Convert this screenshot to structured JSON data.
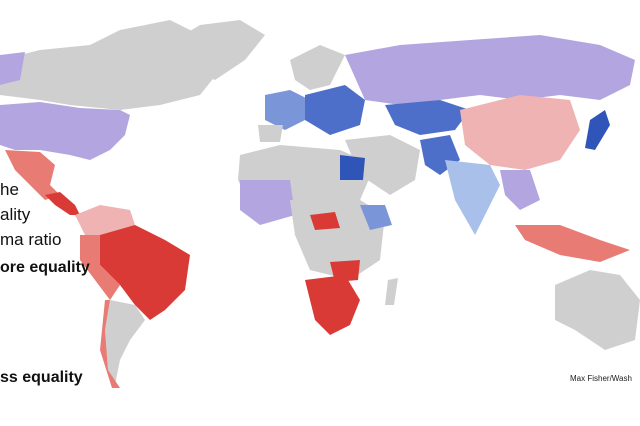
{
  "legend": {
    "lines": [
      "he",
      "ality",
      "ma ratio"
    ],
    "top_label": "ore equality",
    "bottom_label": "ss equality"
  },
  "credit": "Max Fisher/Wash"
}
